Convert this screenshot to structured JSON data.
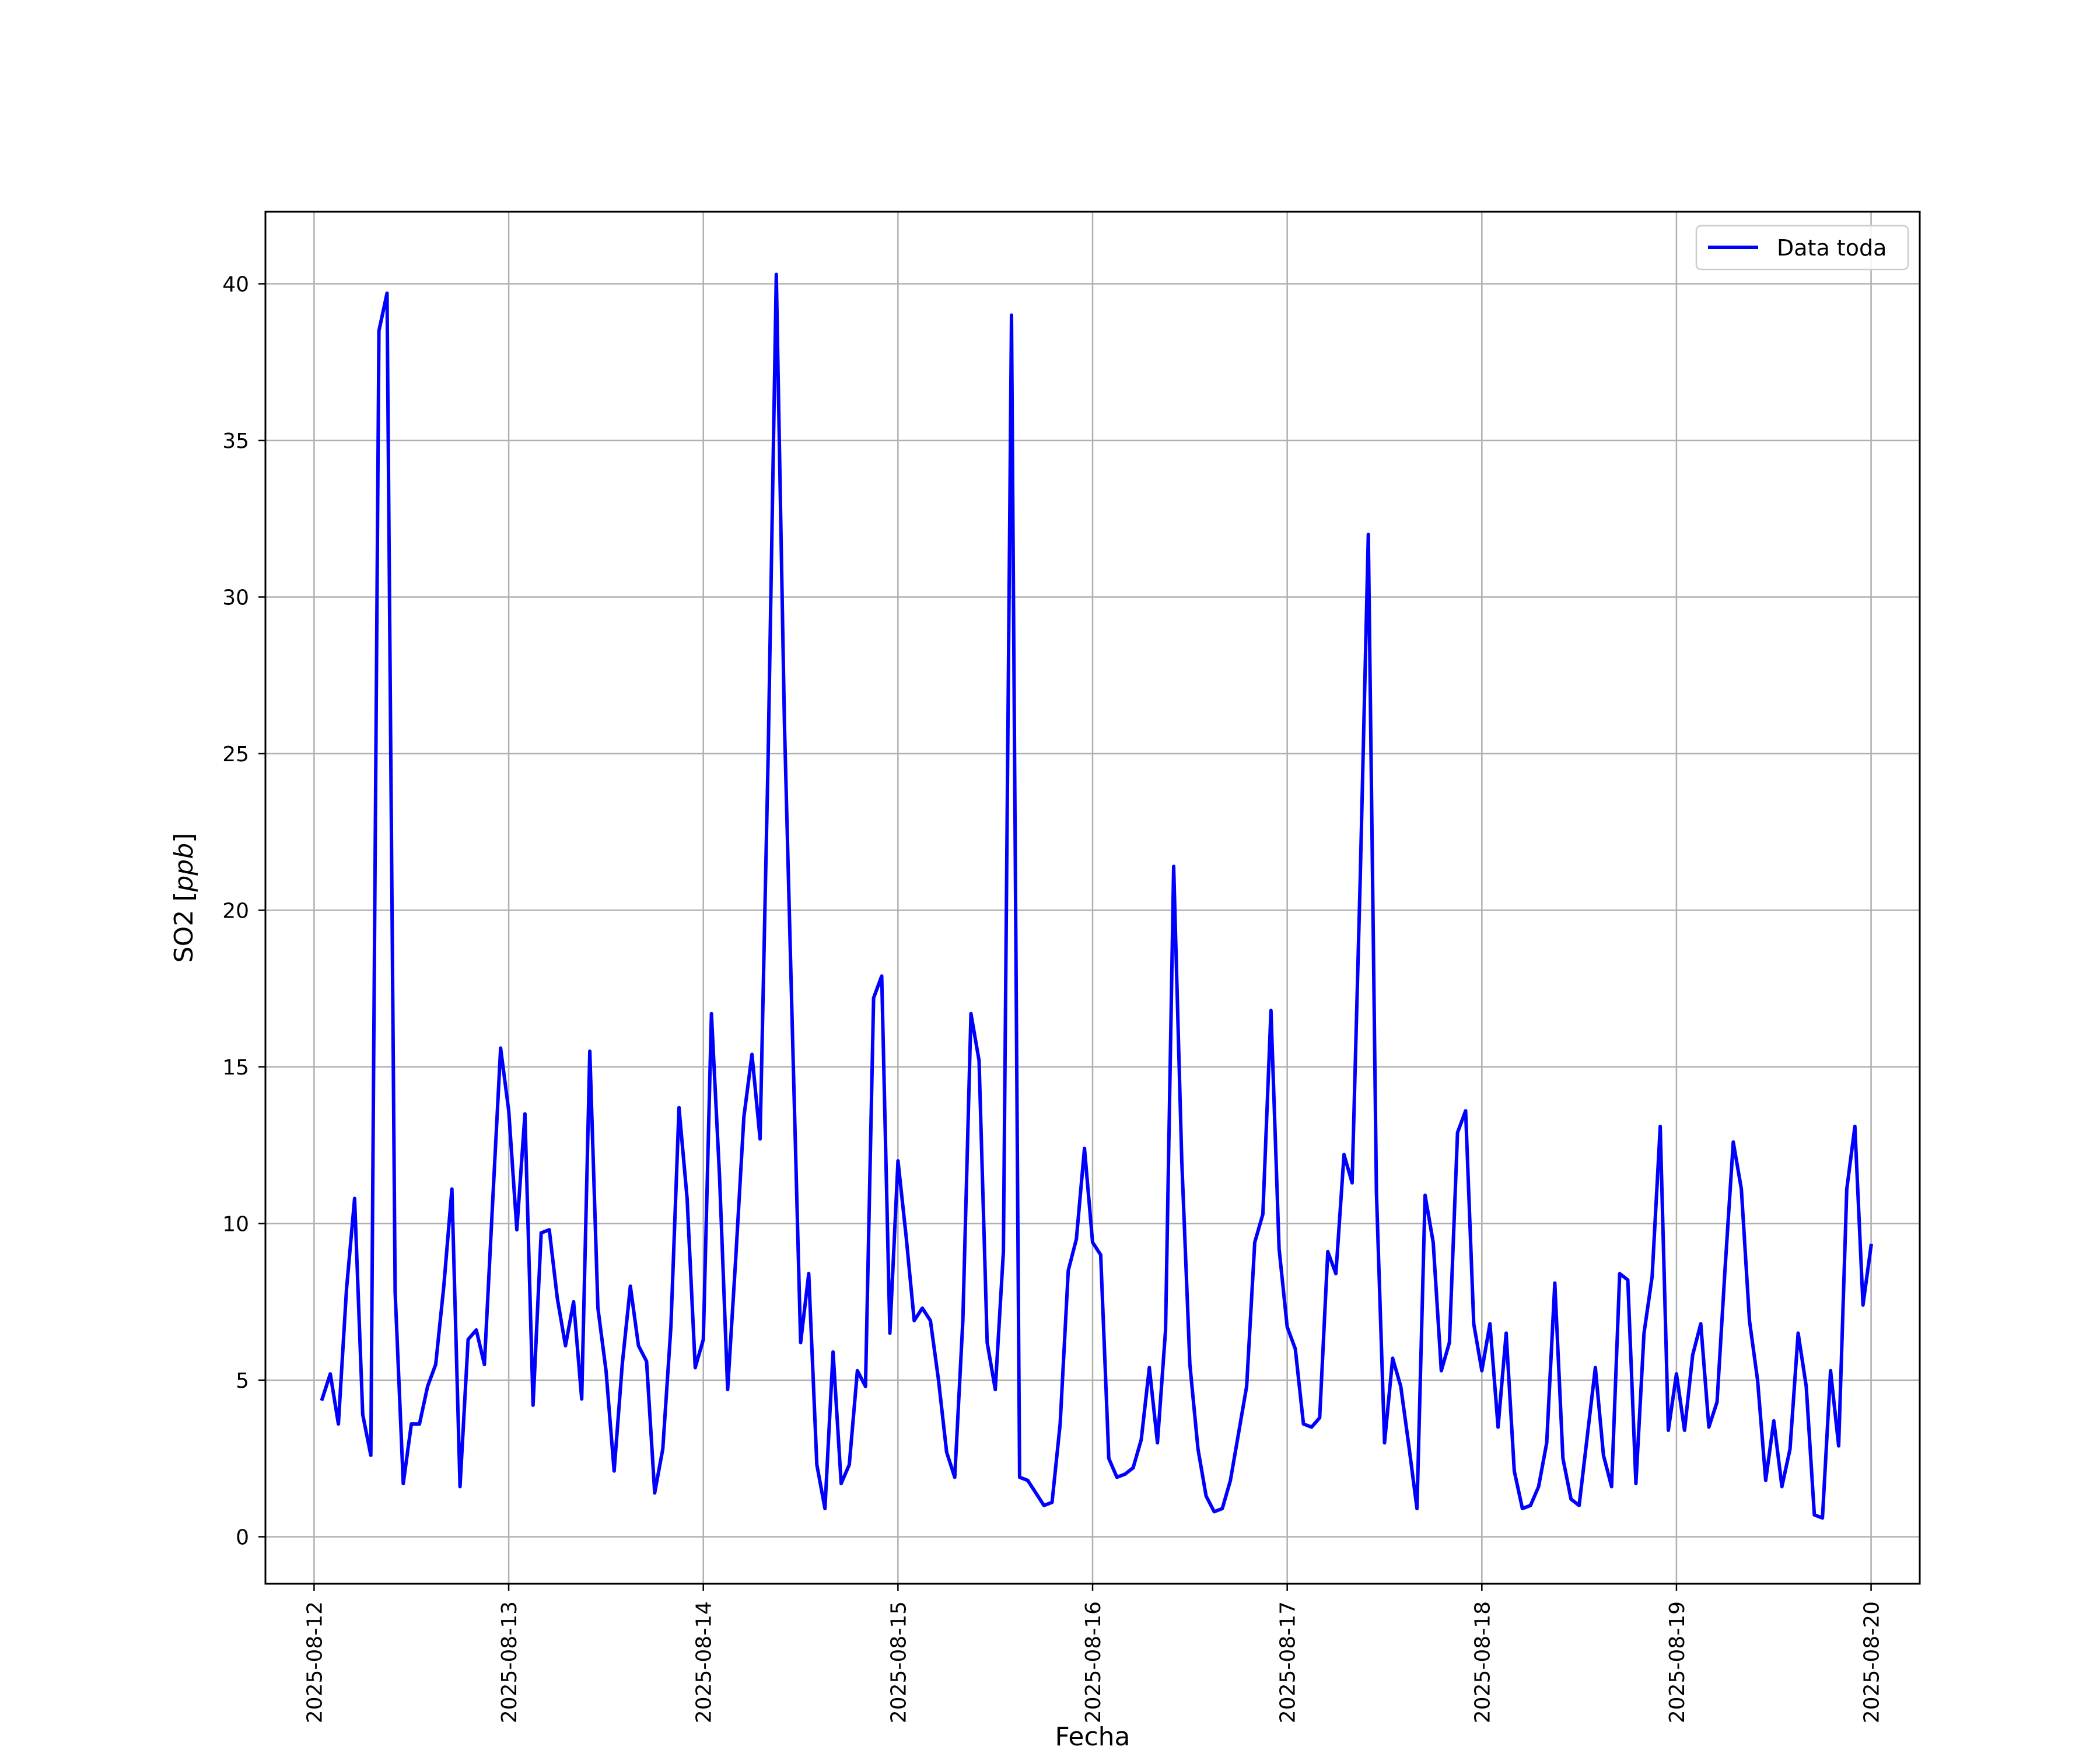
{
  "chart_data": {
    "type": "line",
    "title": "",
    "xlabel": "Fecha",
    "ylabel": "SO2 [ppb]",
    "ylabel_parts": {
      "prefix": "SO2 [",
      "unit": "ppb",
      "suffix": "]"
    },
    "x_range": [
      "2025-08-11 18:00",
      "2025-08-20 06:00"
    ],
    "ylim": [
      -1.5,
      42.3
    ],
    "x_ticks": [
      "2025-08-12",
      "2025-08-13",
      "2025-08-14",
      "2025-08-15",
      "2025-08-16",
      "2025-08-17",
      "2025-08-18",
      "2025-08-19",
      "2025-08-20"
    ],
    "y_ticks": [
      0,
      5,
      10,
      15,
      20,
      25,
      30,
      35,
      40
    ],
    "grid": true,
    "legend_position": "top-right",
    "series": [
      {
        "name": "Data toda",
        "color": "#0000ff",
        "x": [
          "2025-08-12 01:00",
          "2025-08-12 02:00",
          "2025-08-12 03:00",
          "2025-08-12 04:00",
          "2025-08-12 05:00",
          "2025-08-12 06:00",
          "2025-08-12 07:00",
          "2025-08-12 08:00",
          "2025-08-12 09:00",
          "2025-08-12 10:00",
          "2025-08-12 11:00",
          "2025-08-12 12:00",
          "2025-08-12 13:00",
          "2025-08-12 14:00",
          "2025-08-12 15:00",
          "2025-08-12 16:00",
          "2025-08-12 17:00",
          "2025-08-12 18:00",
          "2025-08-12 19:00",
          "2025-08-12 20:00",
          "2025-08-12 21:00",
          "2025-08-12 22:00",
          "2025-08-12 23:00",
          "2025-08-13 00:00",
          "2025-08-13 01:00",
          "2025-08-13 02:00",
          "2025-08-13 03:00",
          "2025-08-13 04:00",
          "2025-08-13 05:00",
          "2025-08-13 06:00",
          "2025-08-13 07:00",
          "2025-08-13 08:00",
          "2025-08-13 09:00",
          "2025-08-13 10:00",
          "2025-08-13 11:00",
          "2025-08-13 12:00",
          "2025-08-13 13:00",
          "2025-08-13 14:00",
          "2025-08-13 15:00",
          "2025-08-13 16:00",
          "2025-08-13 17:00",
          "2025-08-13 18:00",
          "2025-08-13 19:00",
          "2025-08-13 20:00",
          "2025-08-13 21:00",
          "2025-08-13 22:00",
          "2025-08-13 23:00",
          "2025-08-14 00:00",
          "2025-08-14 01:00",
          "2025-08-14 02:00",
          "2025-08-14 03:00",
          "2025-08-14 04:00",
          "2025-08-14 05:00",
          "2025-08-14 06:00",
          "2025-08-14 07:00",
          "2025-08-14 08:00",
          "2025-08-14 09:00",
          "2025-08-14 10:00",
          "2025-08-14 11:00",
          "2025-08-14 12:00",
          "2025-08-14 13:00",
          "2025-08-14 14:00",
          "2025-08-14 15:00",
          "2025-08-14 16:00",
          "2025-08-14 17:00",
          "2025-08-14 18:00",
          "2025-08-14 19:00",
          "2025-08-14 20:00",
          "2025-08-14 21:00",
          "2025-08-14 22:00",
          "2025-08-14 23:00",
          "2025-08-15 00:00",
          "2025-08-15 01:00",
          "2025-08-15 02:00",
          "2025-08-15 03:00",
          "2025-08-15 04:00",
          "2025-08-15 05:00",
          "2025-08-15 06:00",
          "2025-08-15 07:00",
          "2025-08-15 08:00",
          "2025-08-15 09:00",
          "2025-08-15 10:00",
          "2025-08-15 11:00",
          "2025-08-15 12:00",
          "2025-08-15 13:00",
          "2025-08-15 14:00",
          "2025-08-15 15:00",
          "2025-08-15 16:00",
          "2025-08-15 17:00",
          "2025-08-15 18:00",
          "2025-08-15 19:00",
          "2025-08-15 20:00",
          "2025-08-15 21:00",
          "2025-08-15 22:00",
          "2025-08-15 23:00",
          "2025-08-16 00:00",
          "2025-08-16 01:00",
          "2025-08-16 02:00",
          "2025-08-16 03:00",
          "2025-08-16 04:00",
          "2025-08-16 05:00",
          "2025-08-16 06:00",
          "2025-08-16 07:00",
          "2025-08-16 08:00",
          "2025-08-16 09:00",
          "2025-08-16 10:00",
          "2025-08-16 11:00",
          "2025-08-16 12:00",
          "2025-08-16 13:00",
          "2025-08-16 14:00",
          "2025-08-16 15:00",
          "2025-08-16 16:00",
          "2025-08-16 17:00",
          "2025-08-16 18:00",
          "2025-08-16 19:00",
          "2025-08-16 20:00",
          "2025-08-16 21:00",
          "2025-08-16 22:00",
          "2025-08-16 23:00",
          "2025-08-17 00:00",
          "2025-08-17 01:00",
          "2025-08-17 02:00",
          "2025-08-17 03:00",
          "2025-08-17 04:00",
          "2025-08-17 05:00",
          "2025-08-17 06:00",
          "2025-08-17 07:00",
          "2025-08-17 08:00",
          "2025-08-17 09:00",
          "2025-08-17 10:00",
          "2025-08-17 11:00",
          "2025-08-17 12:00",
          "2025-08-17 13:00",
          "2025-08-17 14:00",
          "2025-08-17 15:00",
          "2025-08-17 16:00",
          "2025-08-17 17:00",
          "2025-08-17 18:00",
          "2025-08-17 19:00",
          "2025-08-17 20:00",
          "2025-08-17 21:00",
          "2025-08-17 22:00",
          "2025-08-17 23:00",
          "2025-08-18 00:00",
          "2025-08-18 01:00",
          "2025-08-18 02:00",
          "2025-08-18 03:00",
          "2025-08-18 04:00",
          "2025-08-18 05:00",
          "2025-08-18 06:00",
          "2025-08-18 07:00",
          "2025-08-18 08:00",
          "2025-08-18 09:00",
          "2025-08-18 10:00",
          "2025-08-18 11:00",
          "2025-08-18 12:00",
          "2025-08-18 13:00",
          "2025-08-18 14:00",
          "2025-08-18 15:00",
          "2025-08-18 16:00",
          "2025-08-18 17:00",
          "2025-08-18 18:00",
          "2025-08-18 19:00",
          "2025-08-18 20:00",
          "2025-08-18 21:00",
          "2025-08-18 22:00",
          "2025-08-18 23:00",
          "2025-08-19 00:00",
          "2025-08-19 01:00",
          "2025-08-19 02:00",
          "2025-08-19 03:00",
          "2025-08-19 04:00",
          "2025-08-19 05:00",
          "2025-08-19 06:00",
          "2025-08-19 07:00",
          "2025-08-19 08:00",
          "2025-08-19 09:00",
          "2025-08-19 10:00",
          "2025-08-19 11:00",
          "2025-08-19 12:00",
          "2025-08-19 13:00",
          "2025-08-19 14:00",
          "2025-08-19 15:00",
          "2025-08-19 16:00",
          "2025-08-19 17:00",
          "2025-08-19 18:00",
          "2025-08-19 19:00",
          "2025-08-19 20:00",
          "2025-08-19 21:00",
          "2025-08-19 22:00",
          "2025-08-19 23:00",
          "2025-08-20 00:00"
        ],
        "values": [
          4.4,
          5.2,
          3.6,
          7.9,
          10.8,
          3.9,
          2.6,
          38.5,
          39.7,
          7.8,
          1.7,
          3.6,
          3.6,
          4.8,
          5.5,
          8.0,
          11.1,
          1.6,
          6.3,
          6.6,
          5.5,
          10.6,
          15.6,
          13.6,
          9.8,
          13.5,
          4.2,
          9.7,
          9.8,
          7.6,
          6.1,
          7.5,
          4.4,
          15.5,
          7.3,
          5.3,
          2.1,
          5.5,
          8.0,
          6.1,
          5.6,
          1.4,
          2.8,
          6.7,
          13.7,
          10.8,
          5.4,
          6.3,
          16.7,
          11.5,
          4.7,
          8.9,
          13.4,
          15.4,
          12.7,
          25.0,
          40.3,
          26.0,
          16.0,
          6.2,
          8.4,
          2.3,
          0.9,
          5.9,
          1.7,
          2.3,
          5.3,
          4.8,
          17.2,
          17.9,
          6.5,
          12.0,
          9.6,
          6.9,
          7.3,
          6.9,
          5.0,
          2.7,
          1.9,
          6.9,
          16.7,
          15.2,
          6.2,
          4.7,
          9.1,
          39.0,
          1.9,
          1.8,
          1.4,
          1.0,
          1.1,
          3.6,
          8.5,
          9.5,
          12.4,
          9.4,
          9.0,
          2.5,
          1.9,
          2.0,
          2.2,
          3.1,
          5.4,
          3.0,
          6.6,
          21.4,
          12.0,
          5.5,
          2.8,
          1.3,
          0.8,
          0.9,
          1.8,
          3.3,
          4.8,
          9.4,
          10.3,
          16.8,
          9.2,
          6.7,
          6.0,
          3.6,
          3.5,
          3.8,
          9.1,
          8.4,
          12.2,
          11.3,
          21.0,
          32.0,
          11.0,
          3.0,
          5.7,
          4.8,
          2.9,
          0.9,
          10.9,
          9.4,
          5.3,
          6.2,
          12.9,
          13.6,
          6.8,
          5.3,
          6.8,
          3.5,
          6.5,
          2.1,
          0.9,
          1.0,
          1.6,
          3.0,
          8.1,
          2.5,
          1.2,
          1.0,
          3.2,
          5.4,
          2.6,
          1.6,
          8.4,
          8.2,
          1.7,
          6.5,
          8.3,
          13.1,
          3.4,
          5.2,
          3.4,
          5.8,
          6.8,
          3.5,
          4.3,
          8.6,
          12.6,
          11.1,
          6.9,
          5.0,
          1.8,
          3.7,
          1.6,
          2.8,
          6.5,
          4.8,
          0.7,
          0.6,
          5.3,
          2.9,
          11.1,
          13.1,
          7.4,
          9.3
        ]
      }
    ]
  }
}
